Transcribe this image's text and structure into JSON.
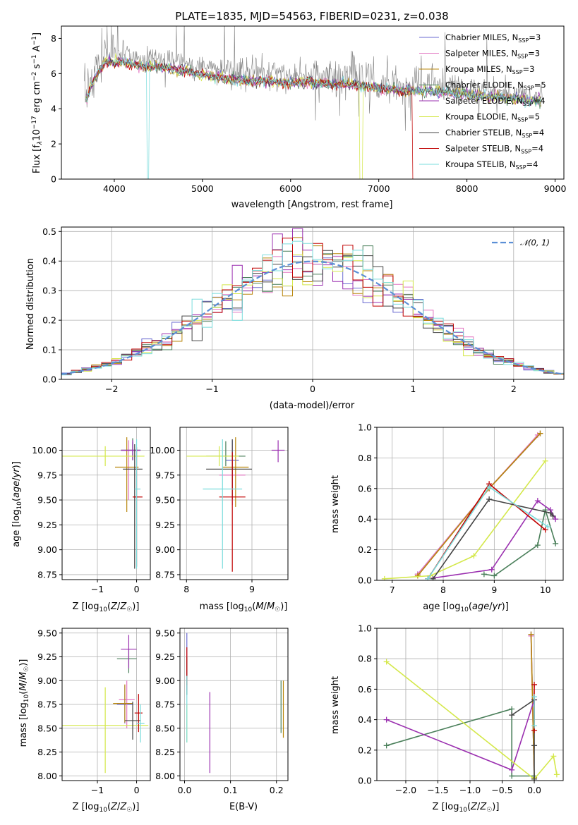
{
  "figure": {
    "title": "PLATE=1835, MJD=54563, FIBERID=0231, z=0.038"
  },
  "models": [
    {
      "label": "Chabrier MILES, N",
      "sub": "SSP",
      "suffix": "=3",
      "color": "#6a6ad0"
    },
    {
      "label": "Salpeter MILES, N",
      "sub": "SSP",
      "suffix": "=3",
      "color": "#e377c2"
    },
    {
      "label": "Kroupa MILES, N",
      "sub": "SSP",
      "suffix": "=3",
      "color": "#b8860b"
    },
    {
      "label": "Chabrier ELODIE, N",
      "sub": "SSP",
      "suffix": "=5",
      "color": "#4a7f5a"
    },
    {
      "label": "Salpeter ELODIE, N",
      "sub": "SSP",
      "suffix": "=4",
      "color": "#9b30b0"
    },
    {
      "label": "Kroupa ELODIE, N",
      "sub": "SSP",
      "suffix": "=5",
      "color": "#d4e84a"
    },
    {
      "label": "Chabrier STELIB, N",
      "sub": "SSP",
      "suffix": "=4",
      "color": "#444444"
    },
    {
      "label": "Salpeter STELIB, N",
      "sub": "SSP",
      "suffix": "=4",
      "color": "#c00000"
    },
    {
      "label": "Kroupa STELIB, N",
      "sub": "SSP",
      "suffix": "=4",
      "color": "#7adcdc"
    }
  ],
  "labels": {
    "spec_x": "wavelength [Angstrom, rest frame]",
    "spec_y": "Flux [f",
    "hist_x": "(data-model)/error",
    "hist_y": "Normed distribution",
    "hist_legend": "N(0, 1)",
    "age_y": "age  [log",
    "z_x": "Z [log",
    "mass_x": "mass [log",
    "mass_y": "mass [log",
    "ebv_x": "E(B-V)",
    "mw_y": "mass weight",
    "age_x": "age  [log"
  },
  "chart_data": [
    {
      "type": "line",
      "title": "PLATE=1835, MJD=54563, FIBERID=0231, z=0.038",
      "xlabel": "wavelength [Angstrom, rest frame]",
      "ylabel": "Flux [f_λ 10^-17 erg cm^-2 s^-1 A^-1]",
      "xlim": [
        3400,
        9100
      ],
      "ylim": [
        0,
        8.7
      ],
      "xticks": [
        4000,
        5000,
        6000,
        7000,
        8000,
        9000
      ],
      "yticks": [
        0,
        2,
        4,
        6,
        8
      ],
      "data_color": "#808080",
      "continuum": [
        [
          3700,
          5.2
        ],
        [
          3800,
          6.4
        ],
        [
          3900,
          7.2
        ],
        [
          4000,
          7.1
        ],
        [
          4100,
          7.2
        ],
        [
          4300,
          6.9
        ],
        [
          4500,
          6.9
        ],
        [
          4700,
          6.7
        ],
        [
          4900,
          6.5
        ],
        [
          5100,
          6.3
        ],
        [
          5300,
          6.1
        ],
        [
          5500,
          6.0
        ],
        [
          5700,
          6.0
        ],
        [
          5900,
          5.9
        ],
        [
          6100,
          5.9
        ],
        [
          6300,
          5.9
        ],
        [
          6500,
          5.8
        ],
        [
          6700,
          5.8
        ],
        [
          6900,
          5.6
        ],
        [
          7100,
          5.5
        ],
        [
          7300,
          5.4
        ],
        [
          7500,
          5.4
        ],
        [
          7800,
          5.3
        ],
        [
          8100,
          5.1
        ],
        [
          8400,
          5.0
        ],
        [
          8700,
          4.8
        ],
        [
          8850,
          4.8
        ]
      ],
      "legend": "top-right"
    },
    {
      "type": "bar",
      "xlabel": "(data-model)/error",
      "ylabel": "Normed distribution",
      "xlim": [
        -2.5,
        2.5
      ],
      "ylim": [
        0,
        0.515
      ],
      "xticks": [
        -2,
        -1,
        0,
        1,
        2
      ],
      "yticks": [
        0.0,
        0.1,
        0.2,
        0.3,
        0.4,
        0.5
      ],
      "bin_width": 0.1,
      "grid": true,
      "legend": "top-right"
    },
    {
      "type": "scatter",
      "xlabel": "Z [log10(Z/Z☉)]",
      "ylabel": "age  [log10(age/yr)]",
      "xlim": [
        -1.9,
        0.35
      ],
      "ylim": [
        8.7,
        10.23
      ],
      "xticks": [
        -1,
        0
      ],
      "yticks": [
        8.75,
        9.0,
        9.25,
        9.5,
        9.75,
        10.0
      ],
      "points": [
        {
          "x": -0.1,
          "y": 10.0,
          "xerr": [
            0.3,
            0.2
          ],
          "yerr": [
            0.1,
            0.08
          ]
        },
        {
          "x": -0.2,
          "y": 10.0,
          "xerr": [
            0.2,
            0.2
          ],
          "yerr": [
            0.5,
            0.1
          ]
        },
        {
          "x": -0.25,
          "y": 9.83,
          "xerr": [
            0.3,
            0.3
          ],
          "yerr": [
            0.45,
            0.3
          ]
        },
        {
          "x": -0.1,
          "y": 10.0,
          "xerr": [
            0.3,
            0.2
          ],
          "yerr": [
            0.1,
            0.12
          ]
        },
        {
          "x": -0.1,
          "y": 10.0,
          "xerr": [
            0.3,
            0.2
          ],
          "yerr": [
            0.1,
            0.1
          ]
        },
        {
          "x": -0.8,
          "y": 9.94,
          "xerr": [
            1.1,
            1.0
          ],
          "yerr": [
            0.1,
            0.1
          ]
        },
        {
          "x": -0.05,
          "y": 9.81,
          "xerr": [
            0.3,
            0.2
          ],
          "yerr": [
            1.0,
            0.25
          ]
        },
        {
          "x": 0.0,
          "y": 9.53,
          "xerr": [
            0.1,
            0.15
          ],
          "yerr": [
            0.7,
            0.5
          ]
        },
        {
          "x": 0.0,
          "y": 9.61,
          "xerr": [
            0.05,
            0.1
          ],
          "yerr": [
            0.8,
            0.5
          ]
        }
      ]
    },
    {
      "type": "scatter",
      "xlabel": "mass [log10(M/M☉)]",
      "ylim": [
        8.7,
        10.23
      ],
      "xlim": [
        7.9,
        9.55
      ],
      "xticks": [
        8,
        9
      ],
      "yticks": [
        8.75,
        9.0,
        9.25,
        9.5,
        9.75,
        10.0
      ],
      "points": [
        {
          "x": 8.7,
          "y": 9.9,
          "xerr": [
            0.1,
            0.1
          ],
          "yerr": [
            0.3,
            0.2
          ]
        },
        {
          "x": 8.7,
          "y": 9.75,
          "xerr": [
            0.2,
            0.2
          ],
          "yerr": [
            0.3,
            0.3
          ]
        },
        {
          "x": 8.75,
          "y": 9.83,
          "xerr": [
            0.2,
            0.2
          ],
          "yerr": [
            0.4,
            0.3
          ]
        },
        {
          "x": 8.6,
          "y": 9.94,
          "xerr": [
            0.3,
            0.3
          ],
          "yerr": [
            0.1,
            0.15
          ]
        },
        {
          "x": 9.4,
          "y": 10.0,
          "xerr": [
            0.1,
            0.1
          ],
          "yerr": [
            0.12,
            0.1
          ]
        },
        {
          "x": 8.5,
          "y": 9.94,
          "xerr": [
            0.5,
            0.3
          ],
          "yerr": [
            0.1,
            0.1
          ]
        },
        {
          "x": 8.7,
          "y": 9.81,
          "xerr": [
            0.4,
            0.3
          ],
          "yerr": [
            0.3,
            0.3
          ]
        },
        {
          "x": 8.7,
          "y": 9.53,
          "xerr": [
            0.2,
            0.2
          ],
          "yerr": [
            0.75,
            0.45
          ]
        },
        {
          "x": 8.55,
          "y": 9.61,
          "xerr": [
            0.3,
            0.3
          ],
          "yerr": [
            0.8,
            0.5
          ]
        }
      ]
    },
    {
      "type": "line",
      "xlabel": "age  [log10(age/yr)]",
      "ylabel": "mass weight",
      "xlim": [
        6.7,
        10.35
      ],
      "ylim": [
        0,
        1.0
      ],
      "xticks": [
        7,
        8,
        9,
        10
      ],
      "yticks": [
        0.0,
        0.2,
        0.4,
        0.6,
        0.8,
        1.0
      ],
      "series": [
        {
          "x": [
            7.5,
            8.9,
            9.9
          ],
          "y": [
            0.04,
            0.6,
            0.96
          ]
        },
        {
          "x": [
            7.5,
            8.9,
            9.85
          ],
          "y": [
            0.04,
            0.6,
            0.95
          ]
        },
        {
          "x": [
            7.5,
            8.9,
            9.9
          ],
          "y": [
            0.03,
            0.6,
            0.96
          ]
        },
        {
          "x": [
            8.8,
            9.0,
            9.85,
            10.0,
            10.2
          ],
          "y": [
            0.04,
            0.03,
            0.23,
            0.46,
            0.24
          ]
        },
        {
          "x": [
            7.7,
            8.95,
            9.85,
            10.1,
            10.2
          ],
          "y": [
            0.01,
            0.07,
            0.52,
            0.46,
            0.4
          ]
        },
        {
          "x": [
            6.85,
            7.75,
            8.6,
            10.0
          ],
          "y": [
            0.01,
            0.03,
            0.16,
            0.78
          ]
        },
        {
          "x": [
            7.8,
            8.9,
            10.1,
            10.15
          ],
          "y": [
            0.01,
            0.53,
            0.44,
            0.42
          ]
        },
        {
          "x": [
            7.7,
            8.9,
            10.0
          ],
          "y": [
            0.01,
            0.63,
            0.33
          ]
        },
        {
          "x": [
            7.7,
            8.9,
            10.05
          ],
          "y": [
            0.01,
            0.61,
            0.35
          ]
        }
      ]
    },
    {
      "type": "scatter",
      "xlabel": "Z [log10(Z/Z☉)]",
      "ylabel": "mass [log10(M/M☉)]",
      "xlim": [
        -1.9,
        0.35
      ],
      "ylim": [
        7.95,
        9.55
      ],
      "xticks": [
        -1,
        0
      ],
      "yticks": [
        8.0,
        8.25,
        8.5,
        8.75,
        9.0,
        9.25,
        9.5
      ],
      "points": [
        {
          "x": -0.3,
          "y": 8.75,
          "xerr": [
            0.2,
            0.2
          ],
          "yerr": [
            0.2,
            0.2
          ]
        },
        {
          "x": -0.25,
          "y": 8.8,
          "xerr": [
            0.2,
            0.2
          ],
          "yerr": [
            0.3,
            0.2
          ]
        },
        {
          "x": -0.3,
          "y": 8.76,
          "xerr": [
            0.3,
            0.2
          ],
          "yerr": [
            0.2,
            0.2
          ]
        },
        {
          "x": -0.2,
          "y": 9.23,
          "xerr": [
            0.3,
            0.2
          ],
          "yerr": [
            0.15,
            0.1
          ]
        },
        {
          "x": -0.2,
          "y": 9.33,
          "xerr": [
            0.2,
            0.2
          ],
          "yerr": [
            0.2,
            0.15
          ]
        },
        {
          "x": -0.8,
          "y": 8.53,
          "xerr": [
            1.1,
            1.1
          ],
          "yerr": [
            0.5,
            0.4
          ]
        },
        {
          "x": -0.1,
          "y": 8.58,
          "xerr": [
            0.2,
            0.2
          ],
          "yerr": [
            0.2,
            0.2
          ]
        },
        {
          "x": 0.05,
          "y": 8.66,
          "xerr": [
            0.1,
            0.1
          ],
          "yerr": [
            0.2,
            0.2
          ]
        },
        {
          "x": 0.1,
          "y": 8.55,
          "xerr": [
            0.1,
            0.1
          ],
          "yerr": [
            0.2,
            0.2
          ]
        }
      ]
    },
    {
      "type": "scatter",
      "xlabel": "E(B-V)",
      "xlim": [
        -0.01,
        0.225
      ],
      "ylim": [
        7.95,
        9.55
      ],
      "xticks": [
        0.0,
        0.1,
        0.2
      ],
      "yticks": [
        8.0,
        8.25,
        8.5,
        8.75,
        9.0,
        9.25,
        9.5
      ],
      "points": [
        {
          "x": 0.005,
          "y": 9.2,
          "yerr": [
            0.2,
            0.3
          ]
        },
        {
          "x": 0.005,
          "y": 9.1,
          "yerr": [
            0.2,
            0.2
          ]
        },
        {
          "x": 0.215,
          "y": 8.7,
          "yerr": [
            0.3,
            0.3
          ]
        },
        {
          "x": 0.21,
          "y": 8.75,
          "yerr": [
            0.3,
            0.25
          ]
        },
        {
          "x": 0.055,
          "y": 8.53,
          "yerr": [
            0.5,
            0.35
          ]
        },
        {
          "x": 0.005,
          "y": 8.55,
          "yerr": [
            0.2,
            0.2
          ]
        },
        {
          "x": 0.005,
          "y": 9.05,
          "yerr": [
            0.2,
            0.2
          ]
        },
        {
          "x": 0.005,
          "y": 9.15,
          "yerr": [
            0.2,
            0.2
          ]
        },
        {
          "x": 0.005,
          "y": 8.7,
          "yerr": [
            0.35,
            0.35
          ]
        }
      ]
    },
    {
      "type": "line",
      "xlabel": "Z [log10(Z/Z☉)]",
      "ylabel": "mass weight",
      "xlim": [
        -2.45,
        0.45
      ],
      "ylim": [
        0,
        1.0
      ],
      "xticks": [
        -2.0,
        -1.5,
        -1.0,
        -0.5,
        0.0
      ],
      "yticks": [
        0.0,
        0.2,
        0.4,
        0.6,
        0.8,
        1.0
      ],
      "series": [
        {
          "x": [
            -0.05,
            0.0
          ],
          "y": [
            0.96,
            0.02
          ]
        },
        {
          "x": [
            -0.05,
            0.0
          ],
          "y": [
            0.95,
            0.02
          ]
        },
        {
          "x": [
            -0.05,
            0.0
          ],
          "y": [
            0.96,
            0.02
          ]
        },
        {
          "x": [
            -2.3,
            -0.35,
            -0.35,
            0.0
          ],
          "y": [
            0.23,
            0.47,
            0.03,
            0.03
          ]
        },
        {
          "x": [
            -2.3,
            -0.35,
            0.0
          ],
          "y": [
            0.4,
            0.07,
            0.53
          ]
        },
        {
          "x": [
            -2.3,
            0.0,
            0.3,
            0.35
          ],
          "y": [
            0.78,
            0.01,
            0.16,
            0.04
          ]
        },
        {
          "x": [
            -0.35,
            0.0,
            0.0,
            0.0
          ],
          "y": [
            0.43,
            0.53,
            0.23,
            0.01
          ]
        },
        {
          "x": [
            0.0,
            0.0
          ],
          "y": [
            0.63,
            0.33
          ]
        },
        {
          "x": [
            0.0,
            0.0
          ],
          "y": [
            0.55,
            0.36
          ]
        }
      ]
    }
  ]
}
